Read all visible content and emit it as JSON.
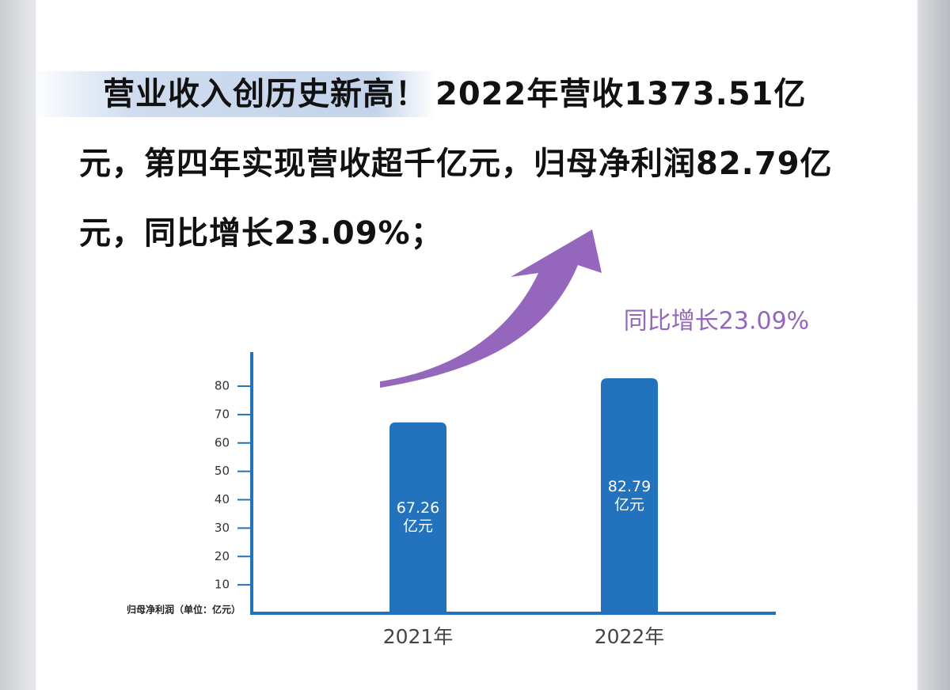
{
  "headline": {
    "highlight": "营业收入创历史新高！",
    "text": "2022年营收1373.51亿元，第四年实现营收超千亿元，归母净利润82.79亿元，同比增长23.09%；"
  },
  "chart_data": {
    "type": "bar",
    "annotation": "同比增长23.09%",
    "y_label": "归母净利润（单位：亿元）",
    "categories": [
      "2021年",
      "2022年"
    ],
    "values": [
      67.26,
      82.79
    ],
    "value_labels": [
      "67.26\n亿元",
      "82.79\n亿元"
    ],
    "color": "#2272bd",
    "ylim": [
      0,
      92
    ],
    "yticks": [
      10,
      20,
      30,
      40,
      50,
      60,
      70,
      80
    ],
    "grid": false
  }
}
